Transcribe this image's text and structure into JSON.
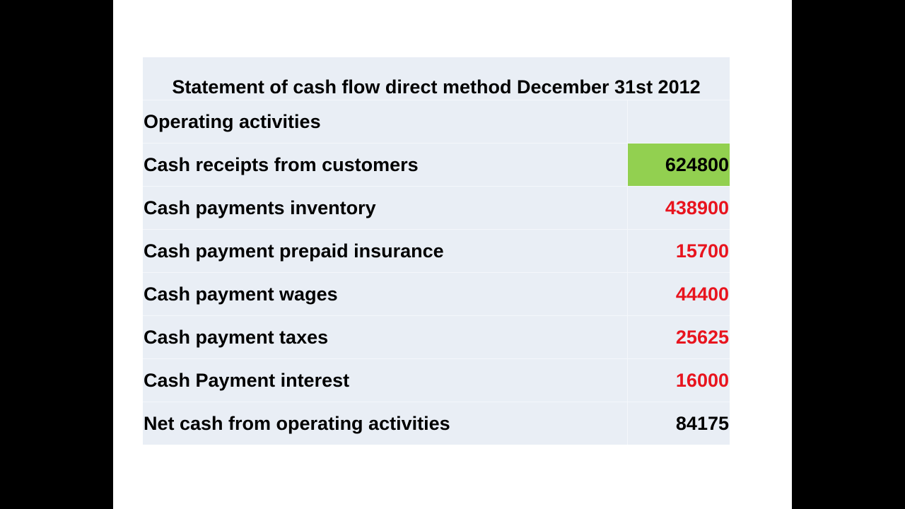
{
  "statement": {
    "title": "Statement of cash flow direct method December 31st 2012",
    "colors": {
      "negative": "#e8141e",
      "normal": "#000000",
      "highlight": "#92d050"
    },
    "rows": [
      {
        "label": "Operating activities",
        "value": "",
        "style": "normal"
      },
      {
        "label": "Cash receipts from customers",
        "value": "624800",
        "style": "highlight"
      },
      {
        "label": "Cash payments inventory",
        "value": "438900",
        "style": "negative"
      },
      {
        "label": "Cash payment prepaid insurance",
        "value": "15700",
        "style": "negative"
      },
      {
        "label": "Cash payment wages",
        "value": "44400",
        "style": "negative"
      },
      {
        "label": "Cash payment taxes",
        "value": "25625",
        "style": "negative"
      },
      {
        "label": "Cash Payment interest",
        "value": "16000",
        "style": "negative"
      },
      {
        "label": "Net cash from operating activities",
        "value": "84175",
        "style": "normal"
      }
    ]
  }
}
